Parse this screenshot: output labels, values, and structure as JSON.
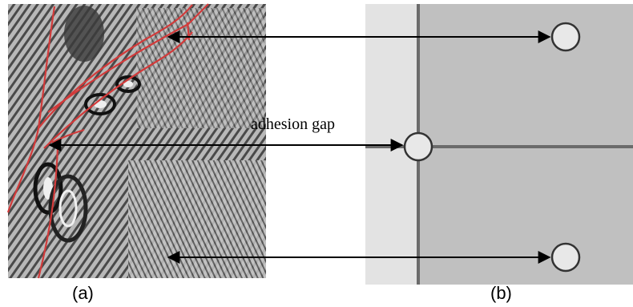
{
  "panel_a": {
    "caption": "(a)",
    "image_description_icon": "interference-fringe-micrograph"
  },
  "panel_b": {
    "caption": "(b)",
    "colors": {
      "left_strip": "#e3e3e3",
      "right_block": "#c0c0c0",
      "grid_line": "#6b6b6b",
      "node_fill": "#e8e8e8",
      "node_stroke": "#333333"
    }
  },
  "annotation": {
    "label": "adhesion gap"
  },
  "colors": {
    "crack_line": "#d23a3a",
    "arrow": "#000000"
  }
}
